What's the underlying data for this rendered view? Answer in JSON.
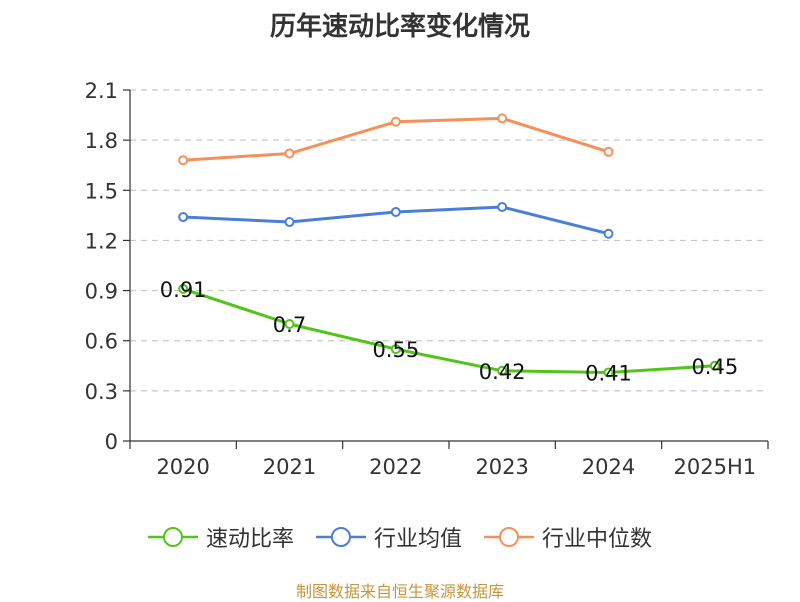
{
  "chart_data": {
    "type": "line",
    "title": "历年速动比率变化情况",
    "categories": [
      "2020",
      "2021",
      "2022",
      "2023",
      "2024",
      "2025H1"
    ],
    "y_ticks": [
      "0",
      "0.3",
      "0.6",
      "0.9",
      "1.2",
      "1.5",
      "1.8",
      "2.1"
    ],
    "ylim": [
      0,
      2.1
    ],
    "grid": true,
    "legend_position": "bottom",
    "series": [
      {
        "name": "速动比率",
        "color": "#52c41a",
        "values": [
          0.91,
          0.7,
          0.55,
          0.42,
          0.41,
          0.45
        ],
        "labels": [
          "0.91",
          "0.7",
          "0.55",
          "0.42",
          "0.41",
          "0.45"
        ]
      },
      {
        "name": "行业均值",
        "color": "#4a7fd8",
        "values": [
          1.34,
          1.31,
          1.37,
          1.4,
          1.24,
          null
        ]
      },
      {
        "name": "行业中位数",
        "color": "#f5905a",
        "values": [
          1.68,
          1.72,
          1.91,
          1.93,
          1.73,
          null
        ]
      }
    ]
  },
  "source_note": "制图数据来自恒生聚源数据库"
}
